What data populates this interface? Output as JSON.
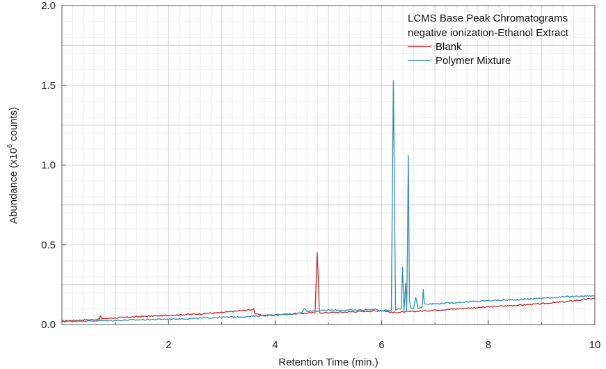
{
  "chart_data": {
    "type": "line",
    "legend_title_lines": [
      "LCMS Base Peak Chromatograms",
      "negative ionization-Ethanol Extract"
    ],
    "legend_position": "top-right",
    "xlabel": "Retention Time (min.)",
    "ylabel": {
      "prefix": "Abundance (x10",
      "exponent": "6",
      "suffix": " counts)"
    },
    "xlim": [
      0.0,
      10.0
    ],
    "ylim": [
      0.0,
      2.0
    ],
    "xticks": [
      2,
      4,
      6,
      8,
      10
    ],
    "xtick_labels": [
      "2",
      "4",
      "6",
      "8",
      "10"
    ],
    "yticks": [
      0.0,
      0.5,
      1.0,
      1.5,
      2.0
    ],
    "ytick_labels": [
      "0.0",
      "0.5",
      "1.0",
      "1.5",
      "2.0"
    ],
    "grid": true,
    "series": [
      {
        "name": "Blank",
        "color": "#c0282d",
        "x": [
          0.0,
          0.5,
          0.7,
          0.72,
          0.75,
          1.0,
          1.5,
          2.0,
          2.5,
          3.0,
          3.3,
          3.55,
          3.6,
          3.62,
          3.7,
          3.8,
          4.0,
          4.2,
          4.5,
          4.75,
          4.79,
          4.81,
          4.83,
          4.86,
          5.0,
          5.3,
          5.6,
          5.9,
          6.0,
          6.2,
          6.5,
          7.0,
          7.5,
          8.0,
          8.5,
          9.0,
          9.5,
          10.0
        ],
        "y": [
          0.022,
          0.03,
          0.032,
          0.055,
          0.035,
          0.042,
          0.05,
          0.058,
          0.065,
          0.075,
          0.085,
          0.092,
          0.1,
          0.07,
          0.06,
          0.058,
          0.06,
          0.065,
          0.07,
          0.074,
          0.45,
          0.3,
          0.076,
          0.073,
          0.075,
          0.078,
          0.082,
          0.085,
          0.088,
          0.075,
          0.08,
          0.09,
          0.1,
          0.11,
          0.12,
          0.13,
          0.145,
          0.165
        ]
      },
      {
        "name": "Polymer Mixture",
        "color": "#2e8fb0",
        "x": [
          0.0,
          0.5,
          1.0,
          1.5,
          2.0,
          2.5,
          3.0,
          3.5,
          4.0,
          4.4,
          4.5,
          4.55,
          4.6,
          4.8,
          5.0,
          5.5,
          5.9,
          6.0,
          6.1,
          6.18,
          6.22,
          6.26,
          6.3,
          6.37,
          6.39,
          6.42,
          6.45,
          6.47,
          6.5,
          6.52,
          6.55,
          6.6,
          6.64,
          6.68,
          6.76,
          6.78,
          6.8,
          7.0,
          7.5,
          8.0,
          8.5,
          9.0,
          9.5,
          10.0
        ],
        "y": [
          0.018,
          0.022,
          0.026,
          0.03,
          0.034,
          0.038,
          0.045,
          0.05,
          0.06,
          0.068,
          0.075,
          0.1,
          0.085,
          0.085,
          0.09,
          0.09,
          0.095,
          0.085,
          0.09,
          0.09,
          1.53,
          0.09,
          0.1,
          0.1,
          0.36,
          0.09,
          0.26,
          0.09,
          1.06,
          0.15,
          0.1,
          0.1,
          0.17,
          0.1,
          0.11,
          0.22,
          0.13,
          0.13,
          0.14,
          0.15,
          0.155,
          0.165,
          0.175,
          0.18
        ]
      }
    ]
  }
}
